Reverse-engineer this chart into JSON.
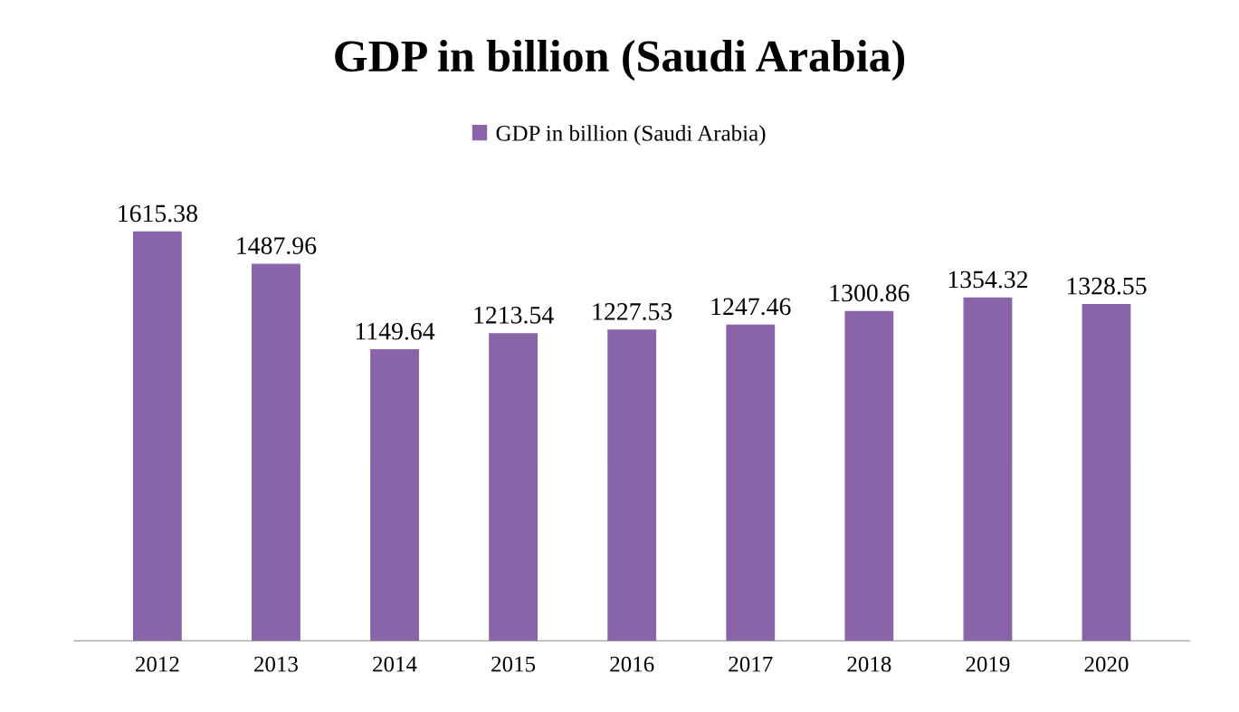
{
  "chart_data": {
    "type": "bar",
    "title": "GDP in billion (Saudi Arabia)",
    "categories": [
      "2012",
      "2013",
      "2014",
      "2015",
      "2016",
      "2017",
      "2018",
      "2019",
      "2020"
    ],
    "series": [
      {
        "name": "GDP in billion (Saudi Arabia)",
        "color": "#8964a8",
        "values": [
          1615.38,
          1487.96,
          1149.64,
          1213.54,
          1227.53,
          1247.46,
          1300.86,
          1354.32,
          1328.55
        ]
      }
    ],
    "data_labels": true,
    "legend": "top",
    "grid": false,
    "tick_labels": "x"
  }
}
